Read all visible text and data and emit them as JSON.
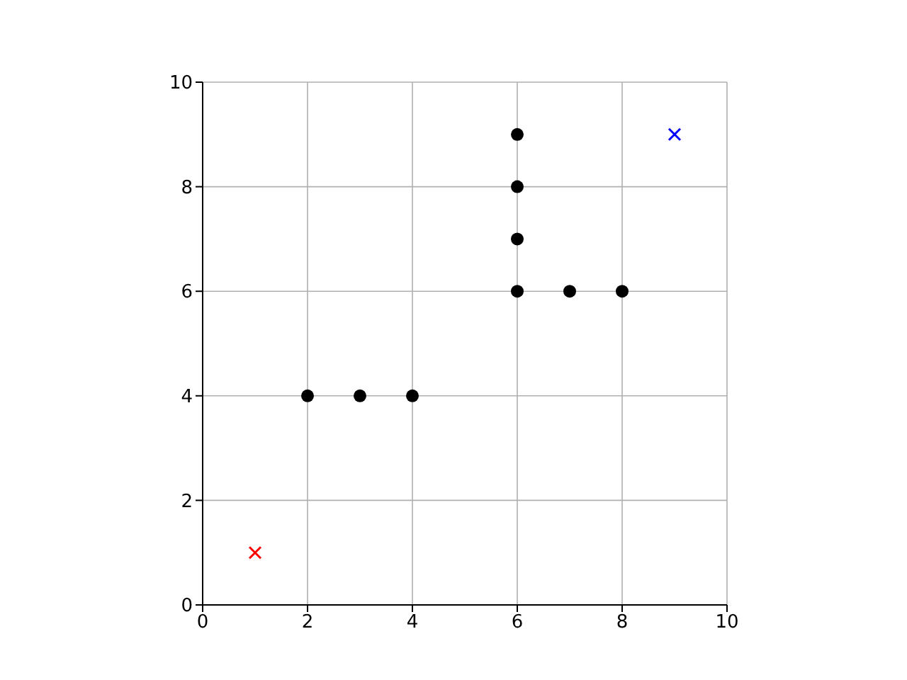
{
  "chart_data": {
    "type": "scatter",
    "xlim": [
      0,
      10
    ],
    "ylim": [
      0,
      10
    ],
    "xticks": [
      0,
      2,
      4,
      6,
      8,
      10
    ],
    "yticks": [
      0,
      2,
      4,
      6,
      8,
      10
    ],
    "grid": true,
    "series": [
      {
        "color": "#000000",
        "marker": "circle",
        "x": [
          2,
          3,
          4,
          6,
          6,
          6,
          6,
          7,
          8
        ],
        "values": [
          4,
          4,
          4,
          6,
          7,
          8,
          9,
          6,
          6
        ]
      },
      {
        "color": "#ff0000",
        "marker": "cross",
        "x": [
          1
        ],
        "values": [
          1
        ]
      },
      {
        "color": "#0000ff",
        "marker": "cross",
        "x": [
          9
        ],
        "values": [
          9
        ]
      }
    ]
  }
}
